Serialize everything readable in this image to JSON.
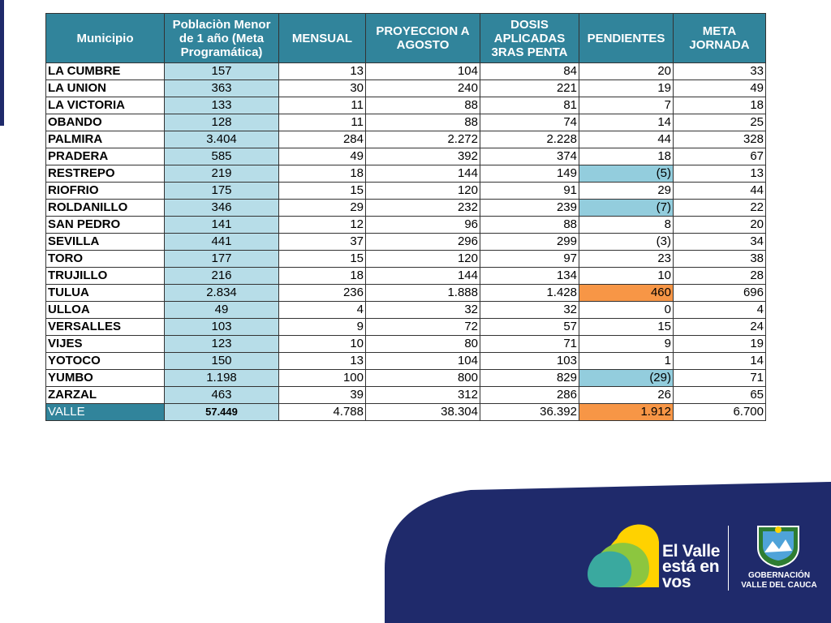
{
  "table": {
    "headers": {
      "municipio": "Municipio",
      "poblacion": "Poblaciòn Menor de 1 año (Meta Programática)",
      "mensual": "MENSUAL",
      "proyeccion": "PROYECCION A AGOSTO",
      "dosis": "DOSIS APLICADAS 3RAS PENTA",
      "pendientes": "PENDIENTES",
      "meta": "META JORNADA"
    },
    "rows": [
      {
        "municipio": "LA CUMBRE",
        "poblacion": "157",
        "mensual": "13",
        "proyeccion": "104",
        "dosis": "84",
        "pendientes": "20",
        "meta": "33"
      },
      {
        "municipio": "LA UNION",
        "poblacion": "363",
        "mensual": "30",
        "proyeccion": "240",
        "dosis": "221",
        "pendientes": "19",
        "meta": "49"
      },
      {
        "municipio": "LA VICTORIA",
        "poblacion": "133",
        "mensual": "11",
        "proyeccion": "88",
        "dosis": "81",
        "pendientes": "7",
        "meta": "18"
      },
      {
        "municipio": "OBANDO",
        "poblacion": "128",
        "mensual": "11",
        "proyeccion": "88",
        "dosis": "74",
        "pendientes": "14",
        "meta": "25"
      },
      {
        "municipio": "PALMIRA",
        "poblacion": "3.404",
        "mensual": "284",
        "proyeccion": "2.272",
        "dosis": "2.228",
        "pendientes": "44",
        "meta": "328"
      },
      {
        "municipio": "PRADERA",
        "poblacion": "585",
        "mensual": "49",
        "proyeccion": "392",
        "dosis": "374",
        "pendientes": "18",
        "meta": "67"
      },
      {
        "municipio": "RESTREPO",
        "poblacion": "219",
        "mensual": "18",
        "proyeccion": "144",
        "dosis": "149",
        "pendientes": "(5)",
        "meta": "13"
      },
      {
        "municipio": "RIOFRIO",
        "poblacion": "175",
        "mensual": "15",
        "proyeccion": "120",
        "dosis": "91",
        "pendientes": "29",
        "meta": "44"
      },
      {
        "municipio": "ROLDANILLO",
        "poblacion": "346",
        "mensual": "29",
        "proyeccion": "232",
        "dosis": "239",
        "pendientes": "(7)",
        "meta": "22"
      },
      {
        "municipio": "SAN PEDRO",
        "poblacion": "141",
        "mensual": "12",
        "proyeccion": "96",
        "dosis": "88",
        "pendientes": "8",
        "meta": "20"
      },
      {
        "municipio": "SEVILLA",
        "poblacion": "441",
        "mensual": "37",
        "proyeccion": "296",
        "dosis": "299",
        "pendientes": "(3)",
        "meta": "34"
      },
      {
        "municipio": "TORO",
        "poblacion": "177",
        "mensual": "15",
        "proyeccion": "120",
        "dosis": "97",
        "pendientes": "23",
        "meta": "38"
      },
      {
        "municipio": "TRUJILLO",
        "poblacion": "216",
        "mensual": "18",
        "proyeccion": "144",
        "dosis": "134",
        "pendientes": "10",
        "meta": "28"
      },
      {
        "municipio": "TULUA",
        "poblacion": "2.834",
        "mensual": "236",
        "proyeccion": "1.888",
        "dosis": "1.428",
        "pendientes": "460",
        "meta": "696"
      },
      {
        "municipio": "ULLOA",
        "poblacion": "49",
        "mensual": "4",
        "proyeccion": "32",
        "dosis": "32",
        "pendientes": "0",
        "meta": "4"
      },
      {
        "municipio": "VERSALLES",
        "poblacion": "103",
        "mensual": "9",
        "proyeccion": "72",
        "dosis": "57",
        "pendientes": "15",
        "meta": "24"
      },
      {
        "municipio": "VIJES",
        "poblacion": "123",
        "mensual": "10",
        "proyeccion": "80",
        "dosis": "71",
        "pendientes": "9",
        "meta": "19"
      },
      {
        "municipio": "YOTOCO",
        "poblacion": "150",
        "mensual": "13",
        "proyeccion": "104",
        "dosis": "103",
        "pendientes": "1",
        "meta": "14"
      },
      {
        "municipio": "YUMBO",
        "poblacion": "1.198",
        "mensual": "100",
        "proyeccion": "800",
        "dosis": "829",
        "pendientes": "(29)",
        "meta": "71"
      },
      {
        "municipio": "ZARZAL",
        "poblacion": "463",
        "mensual": "39",
        "proyeccion": "312",
        "dosis": "286",
        "pendientes": "26",
        "meta": "65"
      }
    ],
    "total": {
      "municipio": "VALLE",
      "poblacion": "57.449",
      "mensual": "4.788",
      "proyeccion": "38.304",
      "dosis": "36.392",
      "pendientes": "1.912",
      "meta": "6.700"
    }
  },
  "branding": {
    "logo_line1": "El Valle",
    "logo_line2": "está en",
    "logo_line3": "vos",
    "gob_line1": "GOBERNACIÓN",
    "gob_line2": "VALLE DEL CAUCA"
  },
  "colors": {
    "header_bg": "#31849b",
    "population_bg": "#b7dde8",
    "negative_pending_bg": "#93cddd",
    "high_pending_bg": "#f79646",
    "brand_navy": "#1f2a6b"
  }
}
